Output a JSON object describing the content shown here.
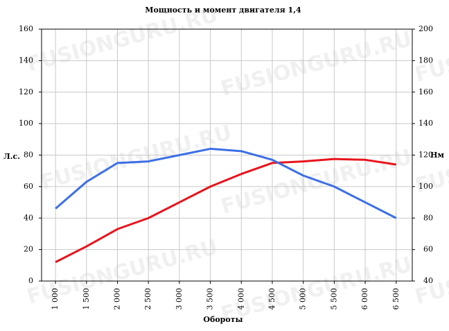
{
  "chart_data": {
    "type": "line",
    "title": "Мощность и момент двигателя 1,4",
    "x_label": "Обороты",
    "y_label": "Л.с.",
    "y2_label": "Нм",
    "watermark": "FUSIONGURU.RU",
    "x": [
      1000,
      1500,
      2000,
      2500,
      3000,
      3500,
      4000,
      4500,
      5000,
      5500,
      6000,
      6500
    ],
    "xlim": [
      775,
      6760
    ],
    "xticks": [
      {
        "value": 1000,
        "label": "1 000"
      },
      {
        "value": 1500,
        "label": "1 500"
      },
      {
        "value": 2000,
        "label": "2 000"
      },
      {
        "value": 2500,
        "label": "2 500"
      },
      {
        "value": 3000,
        "label": "3 000"
      },
      {
        "value": 3500,
        "label": "3 500"
      },
      {
        "value": 4000,
        "label": "4 000"
      },
      {
        "value": 4500,
        "label": "4 500"
      },
      {
        "value": 5000,
        "label": "5 000"
      },
      {
        "value": 5500,
        "label": "5 500"
      },
      {
        "value": 6000,
        "label": "6 000"
      },
      {
        "value": 6500,
        "label": "6 500"
      }
    ],
    "ylim": [
      0,
      160
    ],
    "yticks": [
      0,
      20,
      40,
      60,
      80,
      100,
      120,
      140,
      160
    ],
    "y2lim": [
      40,
      200
    ],
    "y2ticks": [
      40,
      60,
      80,
      100,
      120,
      140,
      160,
      180,
      200
    ],
    "grid": true,
    "series": [
      {
        "color": "#e8141c",
        "values": [
          12,
          22,
          33,
          40,
          50,
          60,
          68,
          75,
          76,
          77.5,
          77,
          74
        ]
      },
      {
        "color": "#3c6fe6",
        "axis": "y2",
        "values": [
          86,
          103,
          115,
          116,
          120,
          124,
          122.5,
          117,
          107,
          100,
          90,
          80
        ]
      }
    ]
  }
}
